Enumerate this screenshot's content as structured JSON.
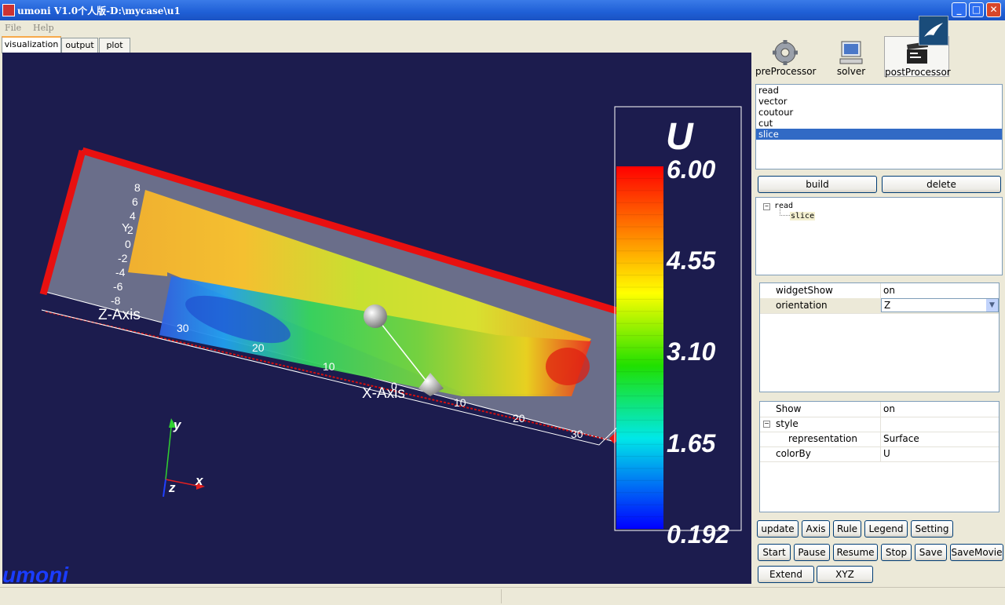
{
  "window": {
    "title": "umoni V1.0个人版-D:\\mycase\\u1"
  },
  "menu": [
    "File",
    "Help"
  ],
  "tabs": [
    "visualization",
    "output",
    "plot"
  ],
  "processors": {
    "pre": "preProcessor",
    "solver": "solver",
    "post": "postProcessor"
  },
  "pipeline": {
    "items": [
      "read",
      "vector",
      "coutour",
      "cut",
      "slice"
    ],
    "selected": "slice"
  },
  "pipeline_buttons": {
    "build": "build",
    "delete": "delete"
  },
  "tree": {
    "root": "read",
    "child": "slice"
  },
  "widget_props": {
    "rows": [
      {
        "key": "widgetShow",
        "value": "on"
      },
      {
        "key": "orientation",
        "value": "Z"
      }
    ]
  },
  "display_props": {
    "show": {
      "key": "Show",
      "value": "on"
    },
    "style": {
      "key": "style"
    },
    "representation": {
      "key": "representation",
      "value": "Surface"
    },
    "colorBy": {
      "key": "colorBy",
      "value": "U"
    }
  },
  "toolbar": {
    "row1": [
      "update",
      "Axis",
      "Rule",
      "Legend",
      "Setting"
    ],
    "row2": [
      "Start",
      "Pause",
      "Resume",
      "Stop",
      "Save",
      "SaveMovie"
    ],
    "row3": [
      "Extend",
      "XYZ"
    ]
  },
  "viewport": {
    "legend_title": "U",
    "legend_labels": [
      "6.00",
      "4.55",
      "3.10",
      "1.65",
      "0.192"
    ],
    "axis_names": {
      "x": "X-Axis",
      "y": "Y",
      "z": "Z-Axis"
    },
    "x_ticks": [
      "30",
      "20",
      "10",
      "0",
      "10",
      "20",
      "30"
    ],
    "y_ticks": [
      "8",
      "6",
      "4",
      "2",
      "0",
      "-2",
      "-4",
      "-6",
      "-8"
    ],
    "orient": {
      "x": "x",
      "y": "y",
      "z": "z"
    },
    "watermark": "umoni",
    "colors": {
      "background": "#1c1c4e",
      "frame": "#e81010"
    }
  }
}
